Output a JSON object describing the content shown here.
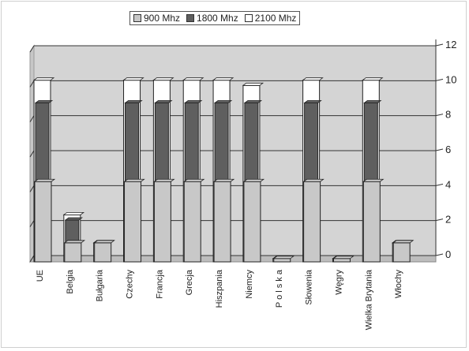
{
  "chart_data": {
    "type": "bar",
    "title": "",
    "xlabel": "",
    "ylabel": "",
    "ylim": [
      0,
      12
    ],
    "yticks": [
      "0",
      "2",
      "4",
      "6",
      "8",
      "10",
      "12"
    ],
    "grid": true,
    "legend_position": "top",
    "categories": [
      "UE",
      "Belgia",
      "Bułgaria",
      "Czechy",
      "Francja",
      "Grecja",
      "Hiszpania",
      "Niemcy",
      "P o l s k a",
      "Słowenia",
      "Węgry",
      "Wielka Brytania",
      "Włochy"
    ],
    "series": [
      {
        "name": "900 Mhz",
        "color": "#c8c8c8",
        "values": [
          4.5,
          1.0,
          1.0,
          4.5,
          4.5,
          4.5,
          4.5,
          4.5,
          0.1,
          4.5,
          0.1,
          4.5,
          1.0
        ]
      },
      {
        "name": "1800 Mhz",
        "color": "#5f5f5f",
        "values": [
          9.0,
          2.3,
          1.0,
          9.0,
          9.0,
          9.0,
          9.0,
          9.0,
          0.1,
          9.0,
          0.1,
          9.0,
          1.0
        ]
      },
      {
        "name": "2100 Mhz",
        "color": "#ffffff",
        "values": [
          10.3,
          2.6,
          1.0,
          10.3,
          10.3,
          10.3,
          10.3,
          10.0,
          0.1,
          10.3,
          0.1,
          10.3,
          1.0
        ]
      }
    ]
  }
}
